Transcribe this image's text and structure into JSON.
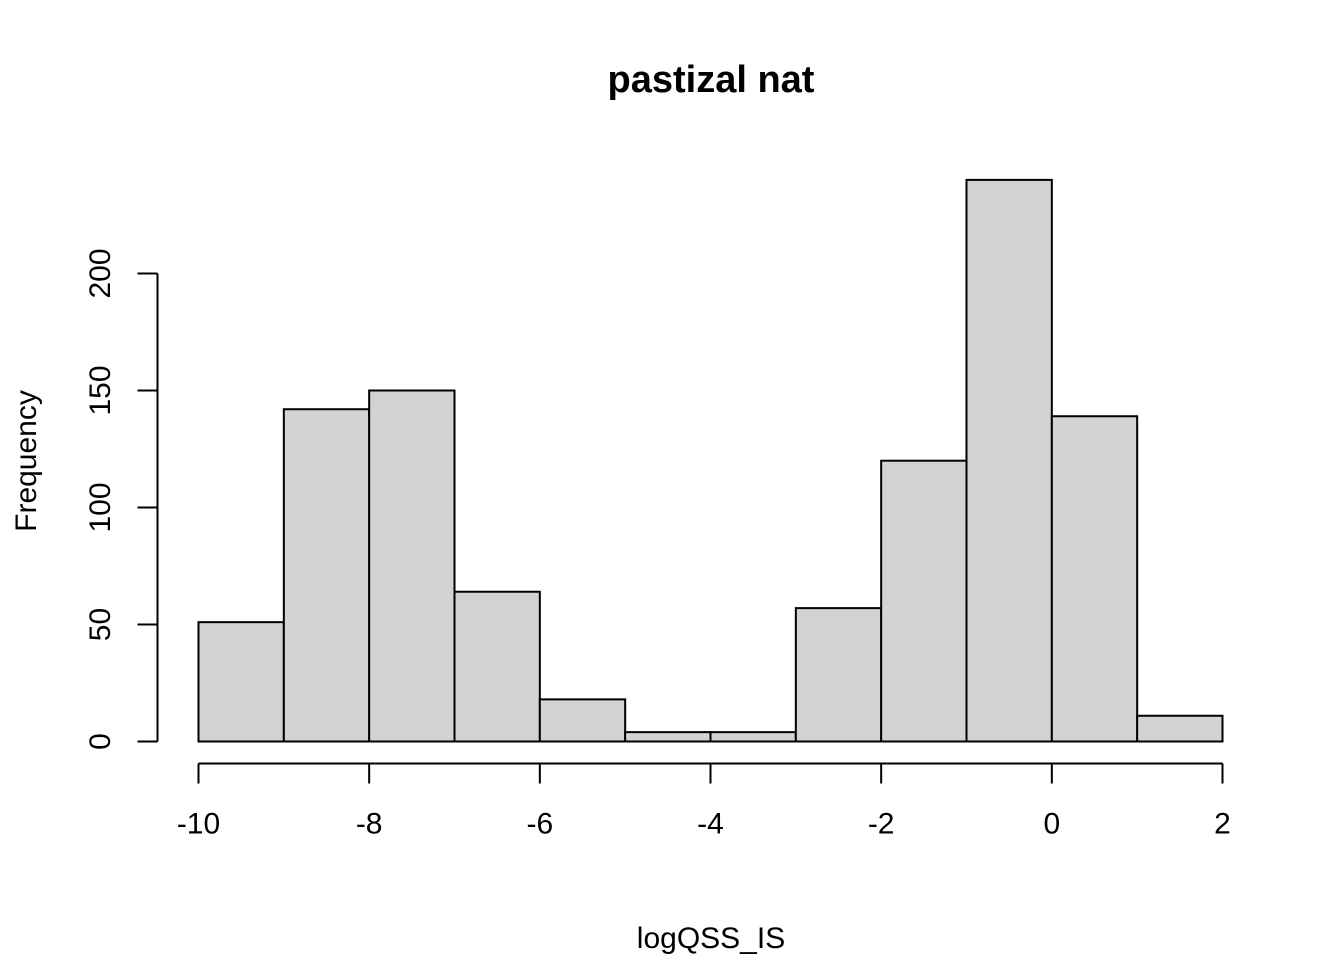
{
  "chart_data": {
    "type": "bar",
    "title": "pastizal nat",
    "xlabel": "logQSS_IS",
    "ylabel": "Frequency",
    "bins": [
      {
        "from": -10,
        "to": -9,
        "count": 51
      },
      {
        "from": -9,
        "to": -8,
        "count": 142
      },
      {
        "from": -8,
        "to": -7,
        "count": 150
      },
      {
        "from": -7,
        "to": -6,
        "count": 64
      },
      {
        "from": -6,
        "to": -5,
        "count": 18
      },
      {
        "from": -5,
        "to": -4,
        "count": 4
      },
      {
        "from": -4,
        "to": -3,
        "count": 4
      },
      {
        "from": -3,
        "to": -2,
        "count": 57
      },
      {
        "from": -2,
        "to": -1,
        "count": 120
      },
      {
        "from": -1,
        "to": 0,
        "count": 240
      },
      {
        "from": 0,
        "to": 1,
        "count": 139
      },
      {
        "from": 1,
        "to": 2,
        "count": 11
      }
    ],
    "xlim": [
      -10,
      2
    ],
    "ylim": [
      0,
      240
    ],
    "x_ticks": [
      -10,
      -8,
      -6,
      -4,
      -2,
      0,
      2
    ],
    "y_ticks": [
      0,
      50,
      100,
      150,
      200
    ],
    "grid": false,
    "colors": {
      "bar_fill": "#d3d3d3",
      "bar_stroke": "#000000"
    }
  }
}
